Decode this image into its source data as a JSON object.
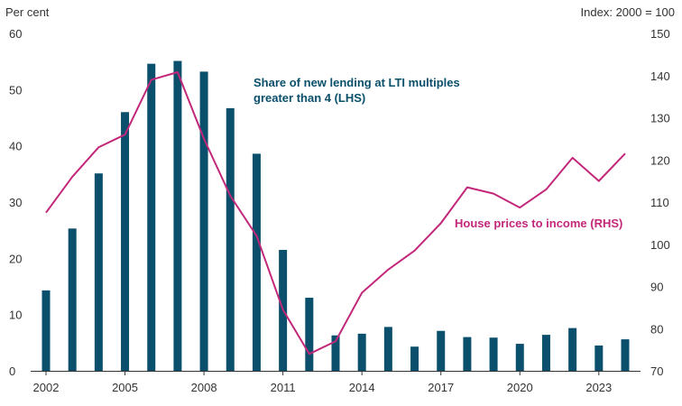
{
  "chart_data": {
    "type": "bar+line",
    "left_axis": {
      "unit_label": "Per cent",
      "range": [
        0,
        60
      ],
      "ticks": [
        "0",
        "10",
        "20",
        "30",
        "40",
        "50",
        "60"
      ]
    },
    "right_axis": {
      "unit_label": "Index: 2000 = 100",
      "range": [
        70,
        150
      ],
      "ticks": [
        "70",
        "80",
        "90",
        "100",
        "110",
        "120",
        "130",
        "140",
        "150"
      ]
    },
    "x_axis": {
      "range": [
        2002,
        2024
      ],
      "ticks": [
        "2002",
        "2005",
        "2008",
        "2011",
        "2014",
        "2017",
        "2020",
        "2023"
      ]
    },
    "series": [
      {
        "name": "Share of new lending at LTI multiples greater than 4 (LHS)",
        "type": "bar",
        "axis": "left",
        "color": "#0a4f6b",
        "x": [
          2002,
          2003,
          2004,
          2005,
          2006,
          2007,
          2008,
          2009,
          2010,
          2011,
          2012,
          2013,
          2014,
          2015,
          2016,
          2017,
          2018,
          2019,
          2020,
          2021,
          2022,
          2023,
          2024
        ],
        "values": [
          14.3,
          25.3,
          35.1,
          46.0,
          54.6,
          55.1,
          53.2,
          46.7,
          38.6,
          21.5,
          13.0,
          6.3,
          6.6,
          7.8,
          4.3,
          7.1,
          6.0,
          5.9,
          4.8,
          6.4,
          7.6,
          4.5,
          5.6
        ]
      },
      {
        "name": "House prices to income (RHS)",
        "type": "line",
        "axis": "right",
        "color": "#c2277a",
        "x": [
          2002,
          2003,
          2004,
          2005,
          2006,
          2007,
          2008,
          2009,
          2010,
          2011,
          2012,
          2013,
          2014,
          2015,
          2016,
          2017,
          2018,
          2019,
          2020,
          2021,
          2022,
          2023,
          2024
        ],
        "values": [
          107.5,
          116.0,
          123.0,
          126.0,
          139.0,
          140.8,
          125.0,
          111.5,
          102.0,
          84.5,
          74.0,
          77.0,
          88.5,
          94.0,
          98.5,
          105.0,
          113.5,
          112.0,
          108.7,
          113.0,
          120.5,
          115.0,
          121.5
        ]
      }
    ],
    "annotations": {
      "bar_label_line1": "Share of new lending at LTI multiples",
      "bar_label_line2": "greater than 4 (LHS)",
      "line_label": "House prices to income (RHS)"
    }
  }
}
